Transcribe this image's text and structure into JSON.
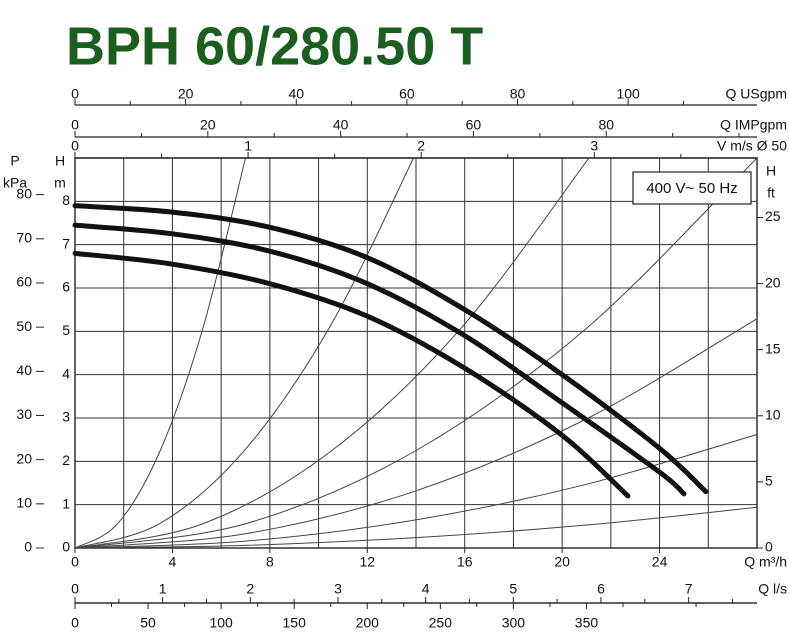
{
  "chart_data": {
    "type": "line",
    "title": "BPH 60/280.50 T",
    "annotation": "400 V~ 50 Hz",
    "x_label": "Q m³/h",
    "y_label": {
      "symbol": "H",
      "unit": "m"
    },
    "xlim": [
      0,
      28
    ],
    "xticks": [
      0,
      4,
      8,
      12,
      16,
      20,
      24
    ],
    "xgrid": [
      2,
      4,
      6,
      8,
      10,
      12,
      14,
      16,
      18,
      20,
      22,
      24,
      26
    ],
    "ylim": [
      0,
      9
    ],
    "yticks": [
      0,
      1,
      2,
      3,
      4,
      5,
      6,
      7,
      8
    ],
    "series": [
      {
        "color": "#111111",
        "x": [
          0,
          4,
          8,
          12,
          16,
          20,
          24,
          25.9
        ],
        "values": [
          7.9,
          7.75,
          7.4,
          6.7,
          5.5,
          4.0,
          2.3,
          1.3
        ]
      },
      {
        "color": "#111111",
        "x": [
          0,
          4,
          8,
          12,
          16,
          20,
          24,
          25
        ],
        "values": [
          7.45,
          7.25,
          6.85,
          6.1,
          4.9,
          3.35,
          1.75,
          1.25
        ]
      },
      {
        "color": "#111111",
        "x": [
          0,
          4,
          8,
          12,
          16,
          20,
          22.7
        ],
        "values": [
          6.8,
          6.55,
          6.1,
          5.35,
          4.15,
          2.6,
          1.2
        ]
      }
    ],
    "resistance_curves": [
      {
        "x": [
          0,
          1.75,
          3.5,
          5.25,
          7
        ],
        "values": [
          0,
          0.56,
          2.25,
          5.07,
          9.0
        ]
      },
      {
        "x": [
          0,
          3.5,
          7,
          10.5,
          13.9
        ],
        "values": [
          0,
          0.57,
          2.28,
          5.14,
          9.0
        ]
      },
      {
        "x": [
          0,
          5.25,
          10.5,
          15.8,
          21.1
        ],
        "values": [
          0,
          0.56,
          2.23,
          5.04,
          9.0
        ]
      },
      {
        "x": [
          0,
          7,
          14,
          21,
          28
        ],
        "values": [
          0,
          0.56,
          2.25,
          5.07,
          9.0
        ]
      },
      {
        "x": [
          0,
          7,
          14,
          21,
          28
        ],
        "values": [
          0,
          0.33,
          1.32,
          2.98,
          5.29
        ]
      },
      {
        "x": [
          0,
          7,
          14,
          21,
          28
        ],
        "values": [
          0,
          0.16,
          0.65,
          1.47,
          2.62
        ]
      },
      {
        "x": [
          0,
          7,
          14,
          21,
          28
        ],
        "values": [
          0,
          0.06,
          0.24,
          0.53,
          0.94
        ]
      }
    ],
    "extra_axes": [
      {
        "position": "top-1",
        "label": "Q USgpm",
        "lim": [
          0,
          123.3
        ],
        "ticks": [
          0,
          20,
          40,
          60,
          80,
          100
        ],
        "minor_ticks": [
          10,
          30,
          50,
          70,
          90,
          110
        ]
      },
      {
        "position": "top-2",
        "label": "Q IMPgpm",
        "lim": [
          0,
          102.7
        ],
        "ticks": [
          0,
          20,
          40,
          60,
          80
        ],
        "minor_ticks": [
          10,
          30,
          50,
          70,
          90,
          100
        ]
      },
      {
        "position": "top-3",
        "label": "V m/s Ø 50",
        "lim": [
          0,
          3.94
        ],
        "ticks": [
          0,
          1,
          2,
          3
        ],
        "minor_ticks": [
          0.5,
          1.5,
          2.5,
          3.5
        ]
      },
      {
        "position": "bottom-1",
        "label": "Q l/s",
        "lim": [
          0,
          7.78
        ],
        "ticks": [
          0,
          1,
          2,
          3,
          4,
          5,
          6,
          7
        ],
        "minor_ticks": [
          0.5,
          1.5,
          2.5,
          3.5,
          4.5,
          5.5,
          6.5,
          7.5
        ]
      },
      {
        "position": "bottom-2",
        "lim": [
          0,
          466.7
        ],
        "ticks": [
          0,
          50,
          100,
          150,
          200,
          250,
          300,
          350
        ],
        "minor_ticks": [
          25,
          75,
          125,
          175,
          225,
          275,
          325,
          375,
          425
        ]
      },
      {
        "position": "left",
        "label": {
          "symbol": "P",
          "unit": "kPa"
        },
        "lim": [
          0,
          88.3
        ],
        "ticks": [
          0,
          10,
          20,
          30,
          40,
          50,
          60,
          70,
          80
        ]
      },
      {
        "position": "right",
        "label": {
          "symbol": "H",
          "unit": "ft"
        },
        "lim": [
          0,
          29.5
        ],
        "ticks": [
          0,
          5,
          10,
          15,
          20,
          25
        ]
      }
    ]
  }
}
